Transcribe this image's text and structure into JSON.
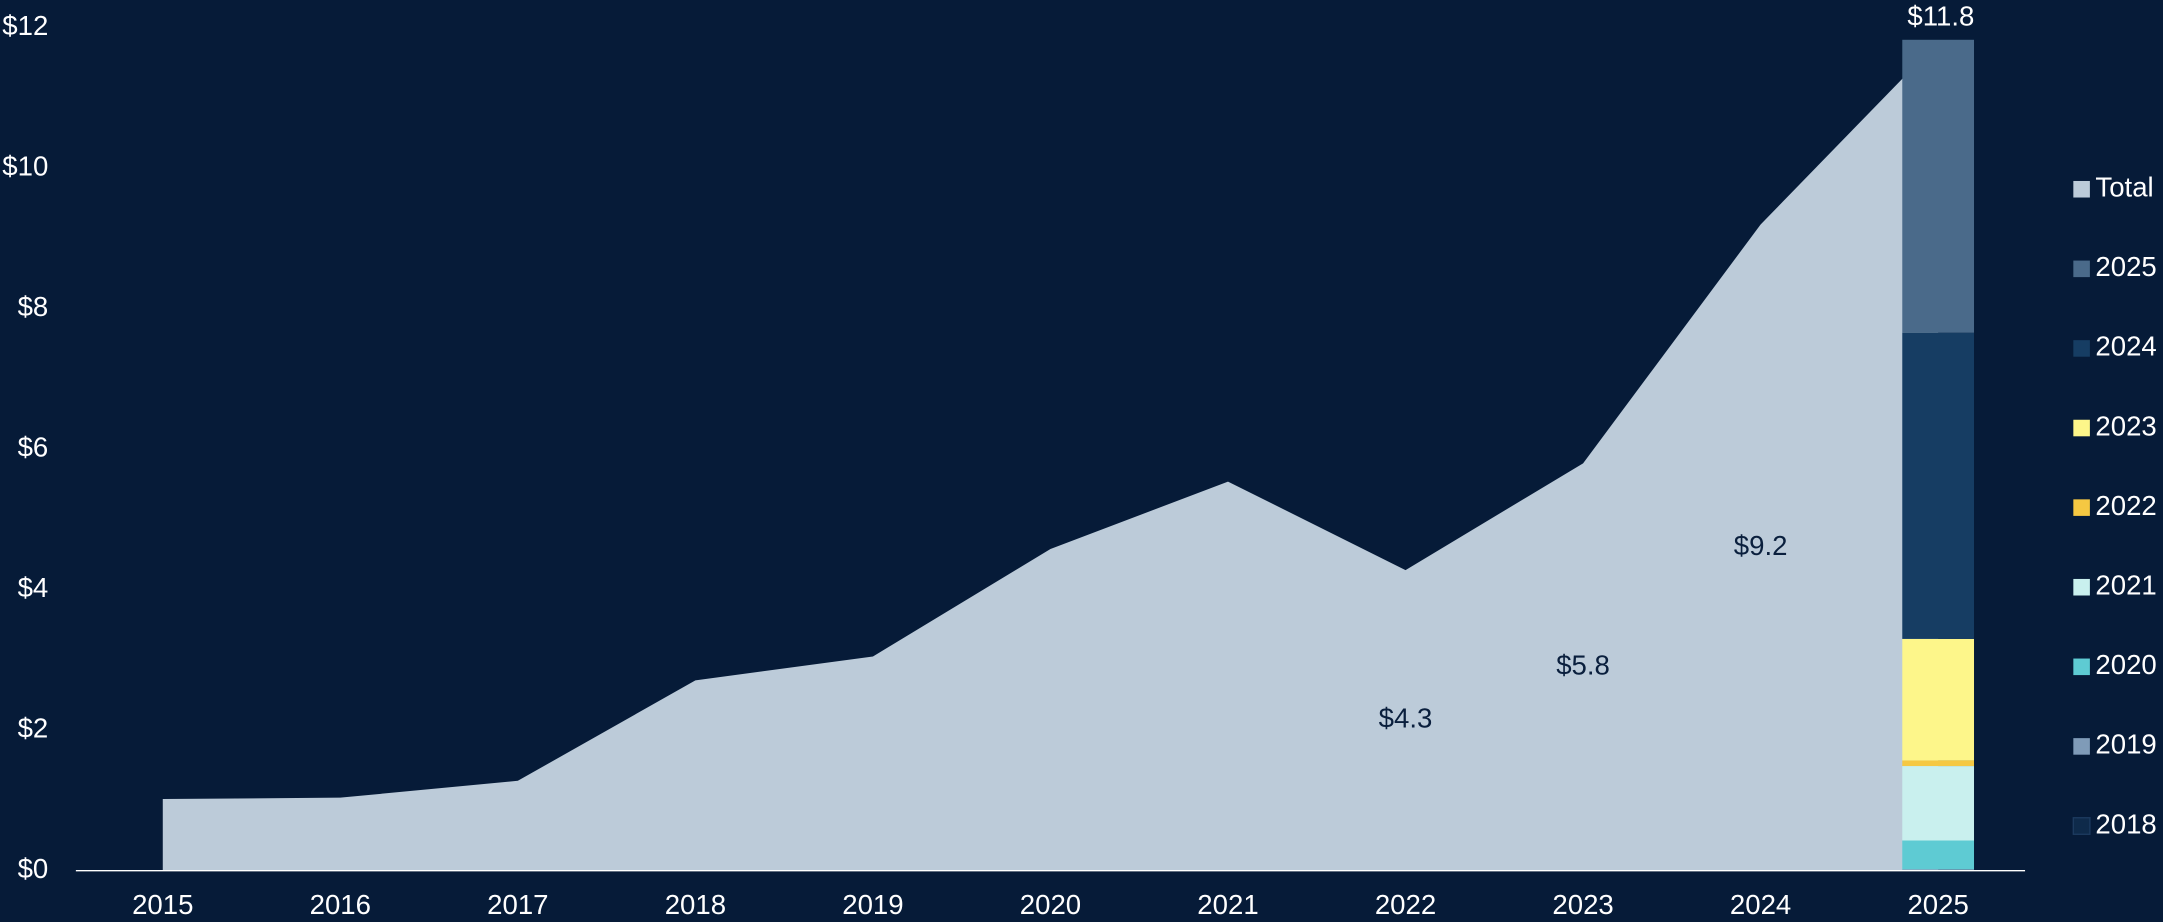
{
  "chart_data": {
    "type": "area",
    "categories": [
      "2015",
      "2016",
      "2017",
      "2018",
      "2019",
      "2020",
      "2021",
      "2022",
      "2023",
      "2024",
      "2025"
    ],
    "ylim": [
      0,
      12
    ],
    "yticks": [
      {
        "value": 0,
        "label": "$0"
      },
      {
        "value": 2,
        "label": "$2"
      },
      {
        "value": 4,
        "label": "$4"
      },
      {
        "value": 6,
        "label": "$6"
      },
      {
        "value": 8,
        "label": "$8"
      },
      {
        "value": 10,
        "label": "$10"
      },
      {
        "value": 12,
        "label": "$12"
      }
    ],
    "legend": "right",
    "series": [
      {
        "name": "Total",
        "type": "area",
        "color": "#bccbd9",
        "values": [
          1.02,
          1.04,
          1.28,
          2.71,
          3.05,
          4.58,
          5.54,
          4.28,
          5.8,
          9.2,
          11.8
        ],
        "value_labels": [
          null,
          null,
          null,
          null,
          null,
          null,
          null,
          "$4.3",
          "$5.8",
          "$9.2",
          "$11.8"
        ]
      },
      {
        "name": "2025",
        "type": "bar",
        "color": "#4a6a8a",
        "values": [
          null,
          null,
          null,
          null,
          null,
          null,
          null,
          null,
          null,
          null,
          4.17
        ]
      },
      {
        "name": "2024",
        "type": "bar",
        "color": "#163d63",
        "values": [
          null,
          null,
          null,
          null,
          null,
          null,
          null,
          null,
          null,
          null,
          4.36
        ]
      },
      {
        "name": "2023",
        "type": "bar",
        "color": "#fdf68a",
        "values": [
          null,
          null,
          null,
          null,
          null,
          null,
          null,
          null,
          null,
          null,
          1.73
        ]
      },
      {
        "name": "2022",
        "type": "bar",
        "color": "#f5c842",
        "values": [
          null,
          null,
          null,
          null,
          null,
          null,
          null,
          null,
          null,
          null,
          0.08
        ]
      },
      {
        "name": "2021",
        "type": "bar",
        "color": "#c9f0ee",
        "values": [
          null,
          null,
          null,
          null,
          null,
          null,
          null,
          null,
          null,
          null,
          1.06
        ]
      },
      {
        "name": "2020",
        "type": "bar",
        "color": "#5ecbd3",
        "values": [
          null,
          null,
          null,
          null,
          null,
          null,
          null,
          null,
          null,
          null,
          0.41
        ]
      },
      {
        "name": "2019",
        "type": "bar",
        "color": "#7f9bb8",
        "values": [
          null,
          null,
          null,
          null,
          null,
          null,
          null,
          null,
          null,
          null,
          0.01
        ]
      },
      {
        "name": "2018",
        "type": "bar",
        "color": "#0e2a4a",
        "values": [
          null,
          null,
          null,
          null,
          null,
          null,
          null,
          null,
          null,
          null,
          0.01
        ]
      }
    ]
  }
}
